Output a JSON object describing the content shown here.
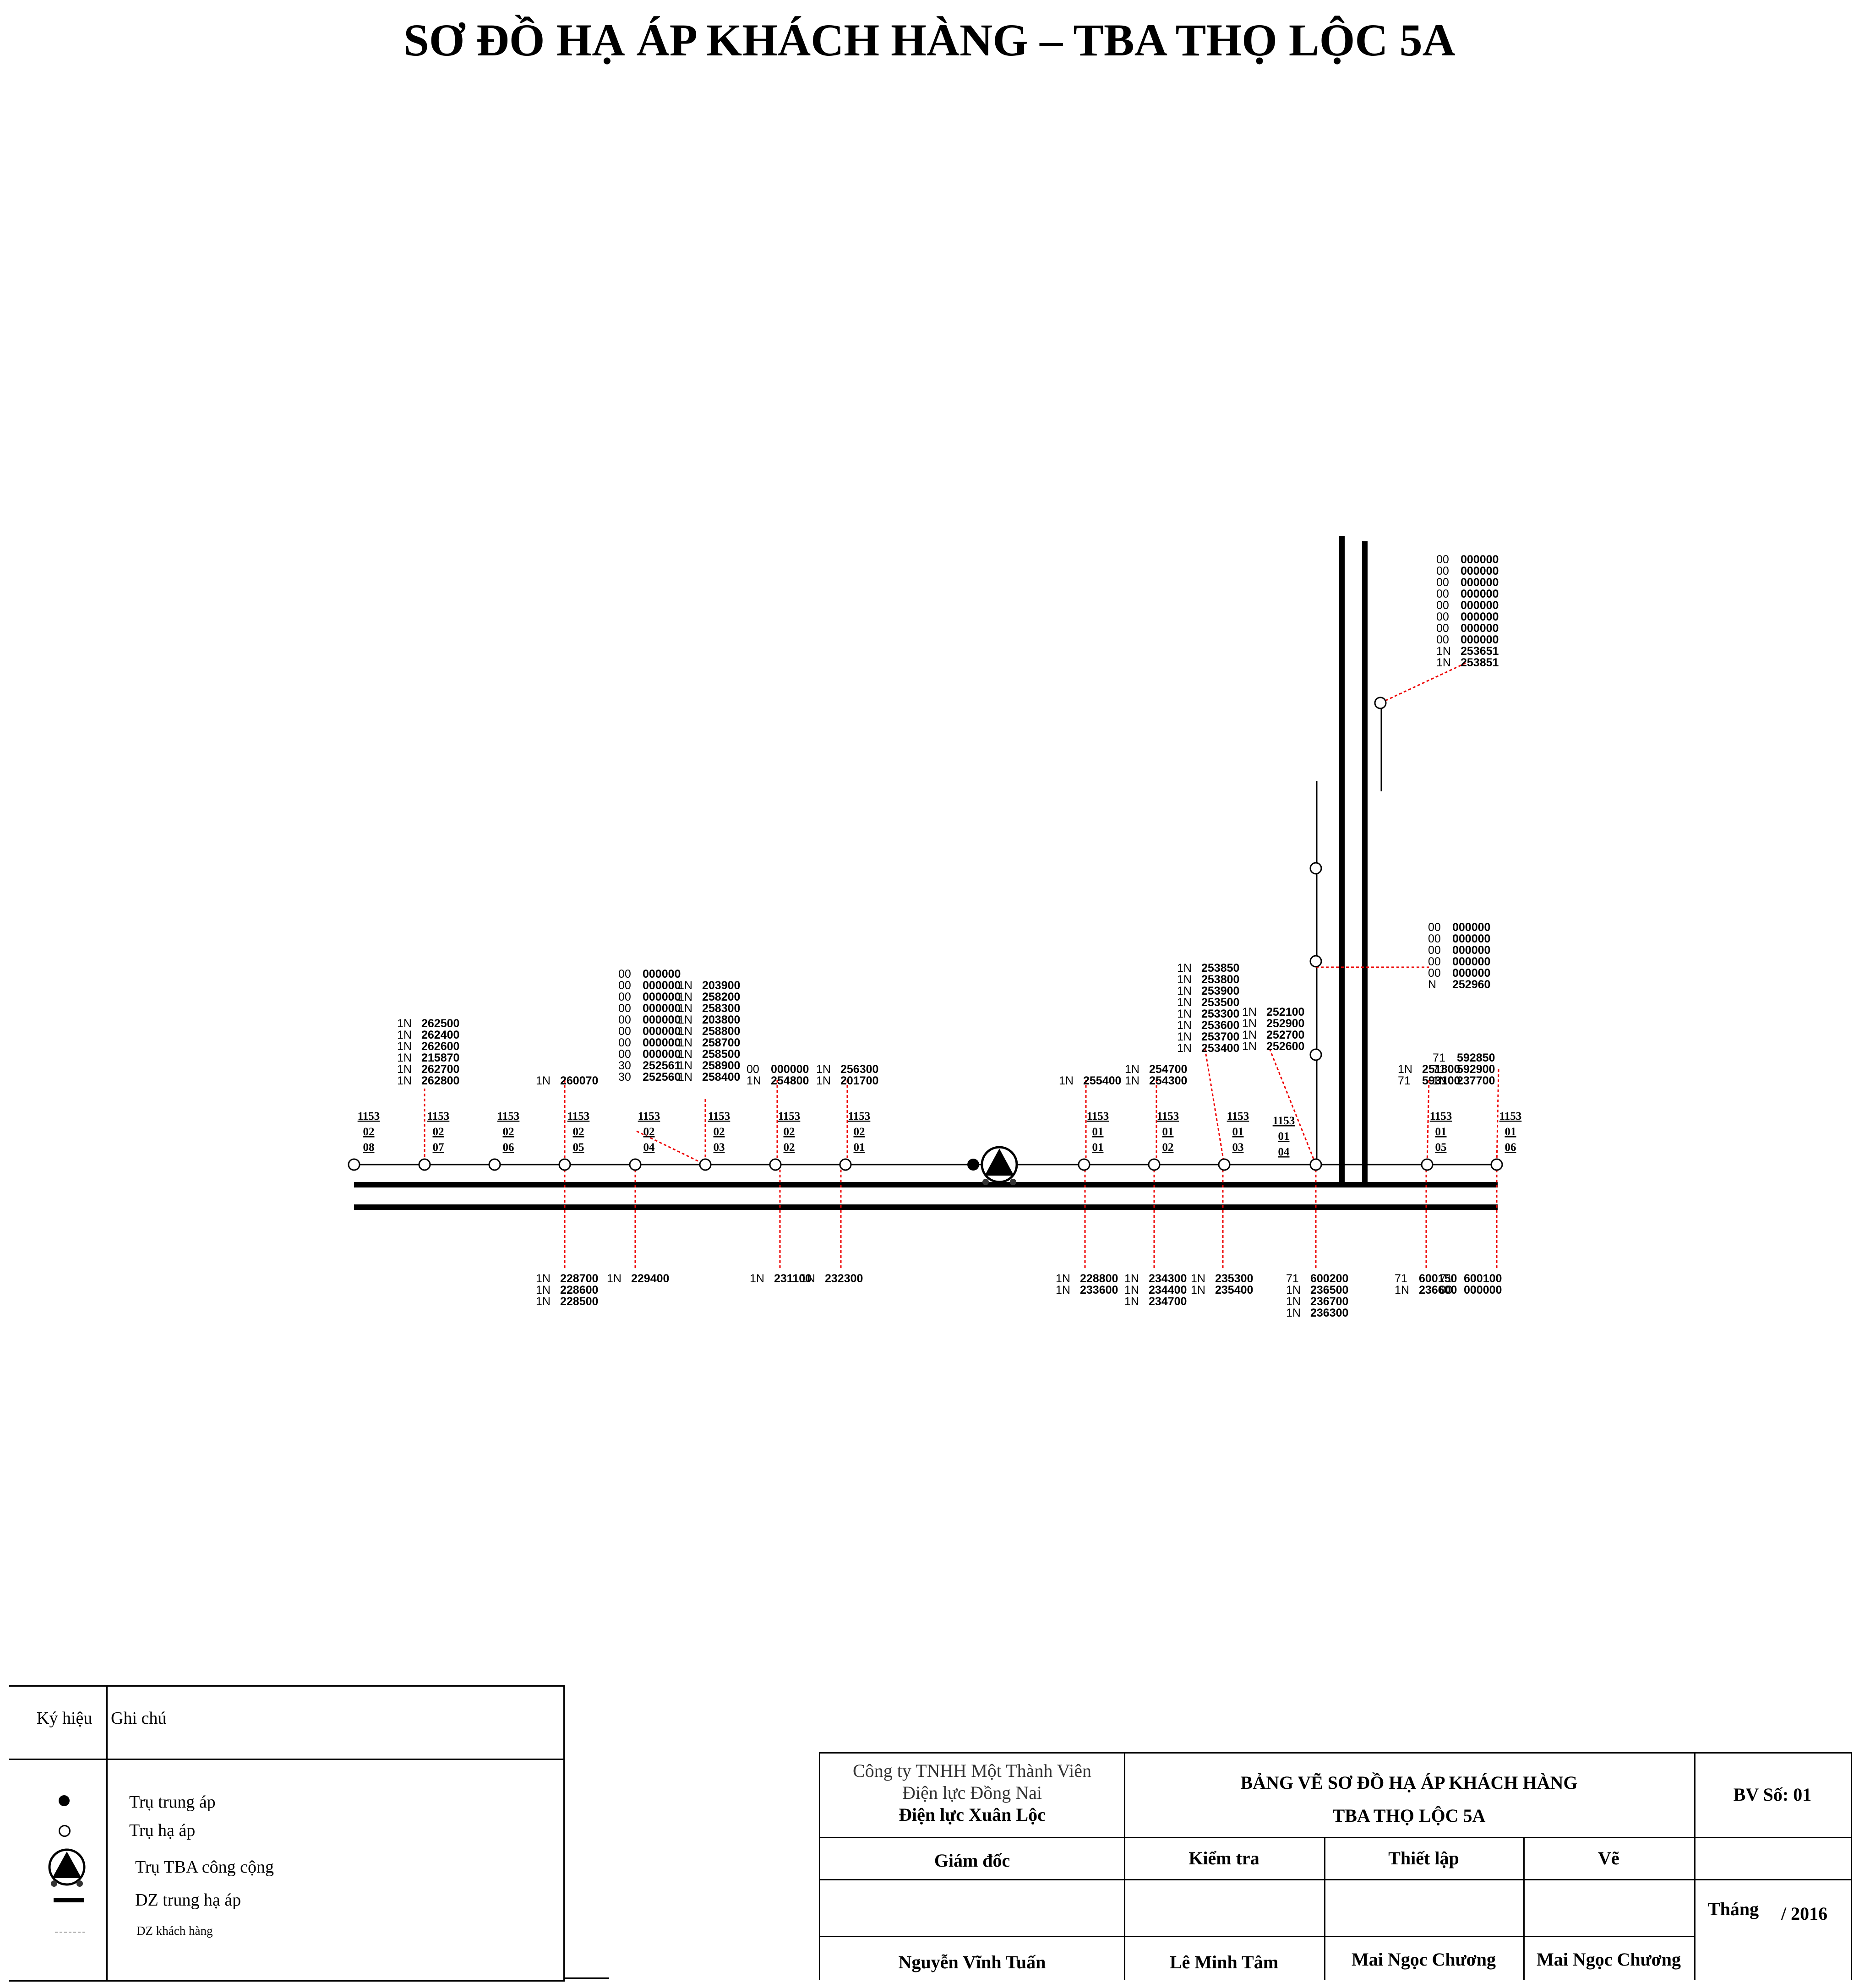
{
  "title": "SƠ ĐỒ HẠ ÁP KHÁCH HÀNG – TBA THỌ LỘC 5A",
  "poles": [
    {
      "id": "p0208",
      "code": [
        "1153",
        "02",
        "08"
      ]
    },
    {
      "id": "p0207",
      "code": [
        "1153",
        "02",
        "07"
      ]
    },
    {
      "id": "p0206",
      "code": [
        "1153",
        "02",
        "06"
      ]
    },
    {
      "id": "p0205",
      "code": [
        "1153",
        "02",
        "05"
      ]
    },
    {
      "id": "p0204",
      "code": [
        "1153",
        "02",
        "04"
      ]
    },
    {
      "id": "p0203",
      "code": [
        "1153",
        "02",
        "03"
      ]
    },
    {
      "id": "p0202",
      "code": [
        "1153",
        "02",
        "02"
      ]
    },
    {
      "id": "p0201",
      "code": [
        "1153",
        "02",
        "01"
      ]
    },
    {
      "id": "p0101",
      "code": [
        "1153",
        "01",
        "01"
      ]
    },
    {
      "id": "p0102",
      "code": [
        "1153",
        "01",
        "02"
      ]
    },
    {
      "id": "p0103",
      "code": [
        "1153",
        "01",
        "03"
      ]
    },
    {
      "id": "p0104",
      "code": [
        "1153",
        "01",
        "04"
      ]
    },
    {
      "id": "p0105",
      "code": [
        "1153",
        "01",
        "05"
      ]
    },
    {
      "id": "p0106",
      "code": [
        "1153",
        "01",
        "06"
      ]
    },
    {
      "id": "pv1",
      "code": []
    },
    {
      "id": "pv2",
      "code": []
    },
    {
      "id": "pv3",
      "code": []
    },
    {
      "id": "pv4",
      "code": []
    }
  ],
  "customer_groups": [
    {
      "id": "g0207t",
      "rows": [
        [
          "1N",
          "262500"
        ],
        [
          "1N",
          "262400"
        ],
        [
          "1N",
          "262600"
        ],
        [
          "1N",
          "215870"
        ],
        [
          "1N",
          "262700"
        ],
        [
          "1N",
          "262800"
        ]
      ]
    },
    {
      "id": "g0205t",
      "rows": [
        [
          "1N",
          "260070"
        ]
      ]
    },
    {
      "id": "g0204t",
      "rows": [
        [
          "00",
          "000000"
        ],
        [
          "00",
          "000000"
        ],
        [
          "00",
          "000000"
        ],
        [
          "00",
          "000000"
        ],
        [
          "00",
          "000000"
        ],
        [
          "00",
          "000000"
        ],
        [
          "00",
          "000000"
        ],
        [
          "00",
          "000000"
        ],
        [
          "30",
          "252561"
        ],
        [
          "30",
          "252560"
        ]
      ]
    },
    {
      "id": "g0203t",
      "rows": [
        [
          "1N",
          "203900"
        ],
        [
          "1N",
          "258200"
        ],
        [
          "1N",
          "258300"
        ],
        [
          "1N",
          "203800"
        ],
        [
          "1N",
          "258800"
        ],
        [
          "1N",
          "258700"
        ],
        [
          "1N",
          "258500"
        ],
        [
          "1N",
          "258900"
        ],
        [
          "1N",
          "258400"
        ]
      ]
    },
    {
      "id": "g0202t",
      "rows": [
        [
          "00",
          "000000"
        ],
        [
          "1N",
          "254800"
        ]
      ]
    },
    {
      "id": "g0201t",
      "rows": [
        [
          "1N",
          "256300"
        ],
        [
          "1N",
          "201700"
        ]
      ]
    },
    {
      "id": "g0101t",
      "rows": [
        [
          "1N",
          "255400"
        ]
      ]
    },
    {
      "id": "g0102t",
      "rows": [
        [
          "1N",
          "254700"
        ],
        [
          "1N",
          "254300"
        ]
      ]
    },
    {
      "id": "g0103t",
      "rows": [
        [
          "1N",
          "253850"
        ],
        [
          "1N",
          "253800"
        ],
        [
          "1N",
          "253900"
        ],
        [
          "1N",
          "253500"
        ],
        [
          "1N",
          "253300"
        ],
        [
          "1N",
          "253600"
        ],
        [
          "1N",
          "253700"
        ],
        [
          "1N",
          "253400"
        ]
      ]
    },
    {
      "id": "g0104t",
      "rows": [
        [
          "1N",
          "252100"
        ],
        [
          "1N",
          "252900"
        ],
        [
          "1N",
          "252700"
        ],
        [
          "1N",
          "252600"
        ]
      ]
    },
    {
      "id": "g0105t",
      "rows": [
        [
          "1N",
          "251800"
        ],
        [
          "71",
          "593100"
        ]
      ]
    },
    {
      "id": "g0106t",
      "rows": [
        [
          "71",
          "592850"
        ],
        [
          "71",
          "592900"
        ],
        [
          "1N",
          "237700"
        ]
      ]
    },
    {
      "id": "gtop",
      "rows": [
        [
          "00",
          "000000"
        ],
        [
          "00",
          "000000"
        ],
        [
          "00",
          "000000"
        ],
        [
          "00",
          "000000"
        ],
        [
          "00",
          "000000"
        ],
        [
          "00",
          "000000"
        ],
        [
          "00",
          "000000"
        ],
        [
          "00",
          "000000"
        ],
        [
          "1N",
          "253651"
        ],
        [
          "1N",
          "253851"
        ]
      ]
    },
    {
      "id": "gmid",
      "rows": [
        [
          "00",
          "000000"
        ],
        [
          "00",
          "000000"
        ],
        [
          "00",
          "000000"
        ],
        [
          "00",
          "000000"
        ],
        [
          "00",
          "000000"
        ],
        [
          "N",
          "252960"
        ]
      ]
    },
    {
      "id": "g0205b",
      "rows": [
        [
          "1N",
          "228700"
        ],
        [
          "1N",
          "228600"
        ],
        [
          "1N",
          "228500"
        ]
      ]
    },
    {
      "id": "g0204b",
      "rows": [
        [
          "1N",
          "229400"
        ]
      ]
    },
    {
      "id": "g0202b",
      "rows": [
        [
          "1N",
          "231100"
        ]
      ]
    },
    {
      "id": "g0201b",
      "rows": [
        [
          "1N",
          "232300"
        ]
      ]
    },
    {
      "id": "g0101b",
      "rows": [
        [
          "1N",
          "228800"
        ],
        [
          "1N",
          "233600"
        ]
      ]
    },
    {
      "id": "g0102b",
      "rows": [
        [
          "1N",
          "234300"
        ],
        [
          "1N",
          "234400"
        ],
        [
          "1N",
          "234700"
        ]
      ]
    },
    {
      "id": "g0103b",
      "rows": [
        [
          "1N",
          "235300"
        ],
        [
          "1N",
          "235400"
        ]
      ]
    },
    {
      "id": "g0104b",
      "rows": [
        [
          "71",
          "600200"
        ],
        [
          "1N",
          "236500"
        ],
        [
          "1N",
          "236700"
        ],
        [
          "1N",
          "236300"
        ]
      ]
    },
    {
      "id": "g0105b",
      "rows": [
        [
          "71",
          "600150"
        ],
        [
          "1N",
          "236600"
        ]
      ]
    },
    {
      "id": "g0106b",
      "rows": [
        [
          "71",
          "600100"
        ],
        [
          "00",
          "000000"
        ]
      ]
    }
  ],
  "legend": {
    "header_symbol": "Ký hiệu",
    "header_note": "Ghi chú",
    "items": [
      {
        "key": "mv-pole",
        "label": "Trụ trung áp"
      },
      {
        "key": "lv-pole",
        "label": "Trụ hạ áp"
      },
      {
        "key": "tba",
        "label": "Trụ TBA công cộng"
      },
      {
        "key": "line",
        "label": "DZ trung hạ áp"
      },
      {
        "key": "customer",
        "label": "DZ khách hàng"
      }
    ]
  },
  "title_block": {
    "company_line1": "Công ty TNHH Một Thành Viên",
    "company_line2": "Điện lực Đồng Nai",
    "company_line3": "Điện lực Xuân Lộc",
    "drawing_title_1": "BẢNG VẼ SƠ ĐỒ HẠ ÁP KHÁCH HÀNG",
    "drawing_title_2": "TBA THỌ LỘC 5A",
    "sheet_no": "BV Số: 01",
    "role_director": "Giám đốc",
    "role_check": "Kiểm tra",
    "role_setup": "Thiết lập",
    "role_draw": "Vẽ",
    "month_label": "Tháng",
    "year": "/ 2016",
    "name_director": "Nguyễn Vĩnh Tuấn",
    "name_check": "Lê Minh Tâm",
    "name_setup": "Mai Ngọc Chương",
    "name_draw": "Mai Ngọc Chương"
  }
}
